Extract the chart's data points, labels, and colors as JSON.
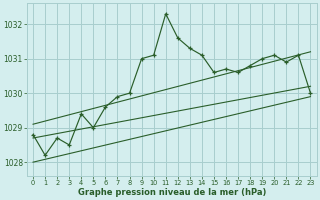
{
  "title": "Graphe pression niveau de la mer (hPa)",
  "bg_color": "#d4eeee",
  "grid_color": "#a8cece",
  "line_color": "#2a5e2a",
  "xlim": [
    -0.5,
    23.5
  ],
  "ylim": [
    1027.6,
    1032.6
  ],
  "yticks": [
    1028,
    1029,
    1030,
    1031,
    1032
  ],
  "xticks": [
    0,
    1,
    2,
    3,
    4,
    5,
    6,
    7,
    8,
    9,
    10,
    11,
    12,
    13,
    14,
    15,
    16,
    17,
    18,
    19,
    20,
    21,
    22,
    23
  ],
  "main_data": [
    1028.8,
    1028.2,
    1028.7,
    1028.5,
    1029.4,
    1029.0,
    1029.6,
    1029.9,
    1030.0,
    1031.0,
    1031.1,
    1032.3,
    1031.6,
    1031.3,
    1031.1,
    1030.6,
    1030.7,
    1030.6,
    1030.8,
    1031.0,
    1031.1,
    1030.9,
    1031.1,
    1030.0
  ],
  "trend1_x": [
    0,
    23
  ],
  "trend1_y": [
    1028.0,
    1029.9
  ],
  "trend2_x": [
    0,
    23
  ],
  "trend2_y": [
    1028.7,
    1030.2
  ],
  "trend3_x": [
    0,
    23
  ],
  "trend3_y": [
    1029.1,
    1031.2
  ]
}
